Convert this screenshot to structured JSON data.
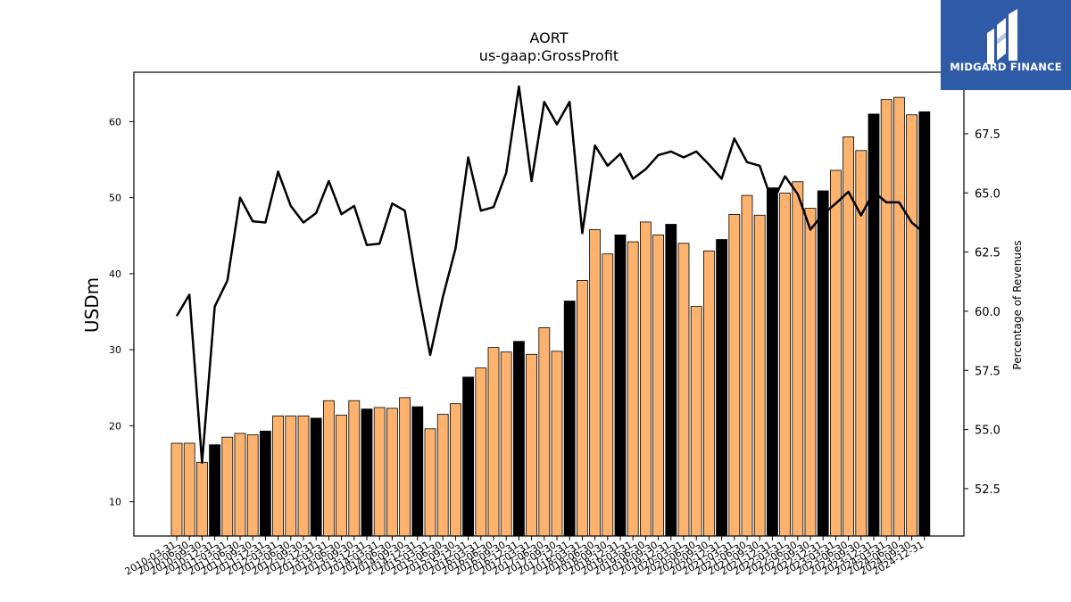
{
  "logo": {
    "text": "MIDGARD FINANCE",
    "bg_color": "#2f5aa8"
  },
  "chart_data": {
    "type": "bar",
    "title": "AORT",
    "subtitle": "us-gaap:GrossProfit",
    "ylabel": "USDm",
    "y2label": "Percentage of Revenues",
    "ylim": [
      5.5,
      66.5
    ],
    "y2lim": [
      50.5,
      70.1
    ],
    "yticks": [
      10,
      20,
      30,
      40,
      50,
      60
    ],
    "y2ticks": [
      52.5,
      55.0,
      57.5,
      60.0,
      62.5,
      65.0,
      67.5
    ],
    "bar_colors": {
      "quarter": "#fdb36d",
      "year_end": "#000000"
    },
    "line_color": "#000000",
    "categories": [
      "2010-03-31",
      "2010-06-30",
      "2010-09-30",
      "2010-12-31",
      "2011-03-31",
      "2011-06-30",
      "2011-09-30",
      "2011-12-31",
      "2012-03-31",
      "2012-06-30",
      "2012-09-30",
      "2012-12-31",
      "2013-03-31",
      "2013-06-30",
      "2013-09-30",
      "2013-12-31",
      "2014-03-31",
      "2014-06-30",
      "2014-09-30",
      "2014-12-31",
      "2015-03-31",
      "2015-06-30",
      "2015-09-30",
      "2015-12-31",
      "2016-03-31",
      "2016-06-30",
      "2016-09-30",
      "2016-12-31",
      "2017-03-31",
      "2017-06-30",
      "2017-09-30",
      "2017-12-31",
      "2018-03-31",
      "2018-06-30",
      "2018-09-30",
      "2018-12-31",
      "2019-03-31",
      "2019-06-30",
      "2019-09-30",
      "2019-12-31",
      "2020-03-31",
      "2020-06-30",
      "2020-09-30",
      "2020-12-31",
      "2021-03-31",
      "2021-06-30",
      "2021-09-30",
      "2021-12-31",
      "2022-03-31",
      "2022-06-30",
      "2022-09-30",
      "2022-12-31",
      "2023-03-31",
      "2023-06-30",
      "2023-09-30",
      "2023-12-31",
      "2024-03-31",
      "2024-06-30",
      "2024-09-30",
      "2024-12-31"
    ],
    "xtick_labels": [
      "2010-03-31",
      "2010-06-30",
      "2010-09-30",
      "2010-12-31",
      "2011-03-31",
      "2011-06-30",
      "2011-09-30",
      "2011-12-31",
      "2012-03-31",
      "2012-06-30",
      "2012-09-30",
      "2012-12-31",
      "2013-03-31",
      "2013-06-30",
      "2013-09-30",
      "2013-12-31",
      "2014-03-31",
      "2014-06-30",
      "2014-09-30",
      "2014-12-31",
      "2015-03-31",
      "2015-06-30",
      "2015-09-30",
      "2015-12-31",
      "2016-03-31",
      "2016-06-30",
      "2016-09-30",
      "2016-12-31",
      "2017-03-31",
      "2017-06-30",
      "2017-09-30",
      "2017-12-31",
      "2018-03-31",
      "2018-06-30",
      "2018-09-30",
      "2018-12-31",
      "2019-03-31",
      "2019-06-30",
      "2019-09-30",
      "2019-12-31",
      "2020-03-31",
      "2020-06-30",
      "2020-09-30",
      "2020-12-31",
      "2021-03-31",
      "2021-06-30",
      "2021-09-30",
      "2021-12-31",
      "2022-03-31",
      "2022-06-30",
      "2022-09-30",
      "2022-12-31",
      "2023-03-31",
      "2023-06-30",
      "2023-09-30",
      "2023-12-31",
      "2024-03-31",
      "2024-06-30",
      "2024-09-30",
      "2024-12-31"
    ],
    "bar_values": [
      17.7,
      17.7,
      15.2,
      17.5,
      18.5,
      19.0,
      18.8,
      19.3,
      21.3,
      21.3,
      21.3,
      21.0,
      23.3,
      21.4,
      23.3,
      22.2,
      22.4,
      22.3,
      23.7,
      22.5,
      19.6,
      21.5,
      22.9,
      26.4,
      27.6,
      30.3,
      29.7,
      31.1,
      29.4,
      32.9,
      29.8,
      36.4,
      39.1,
      45.8,
      42.6,
      45.1,
      44.2,
      46.8,
      45.1,
      46.5,
      44.0,
      35.7,
      43.0,
      44.5,
      47.8,
      50.3,
      47.7,
      51.3,
      50.6,
      52.1,
      48.6,
      50.9,
      53.6,
      58.0,
      56.2,
      61.0,
      62.9,
      63.2,
      60.9,
      61.3
    ],
    "pct_values": [
      59.8,
      60.7,
      53.6,
      60.2,
      61.3,
      64.8,
      63.8,
      63.75,
      65.9,
      64.45,
      63.75,
      64.15,
      65.5,
      64.1,
      64.45,
      62.8,
      62.85,
      64.55,
      64.25,
      61.0,
      58.15,
      60.6,
      62.65,
      66.5,
      64.25,
      64.4,
      65.85,
      69.5,
      65.5,
      68.85,
      67.9,
      68.85,
      63.3,
      67.0,
      66.15,
      66.65,
      65.6,
      66.0,
      66.6,
      66.75,
      66.5,
      66.75,
      66.2,
      65.6,
      67.3,
      66.3,
      66.15,
      64.6,
      65.7,
      64.95,
      63.45,
      64.1,
      64.55,
      65.05,
      64.05,
      65.05,
      64.6,
      64.6,
      63.75,
      63.3
    ]
  }
}
